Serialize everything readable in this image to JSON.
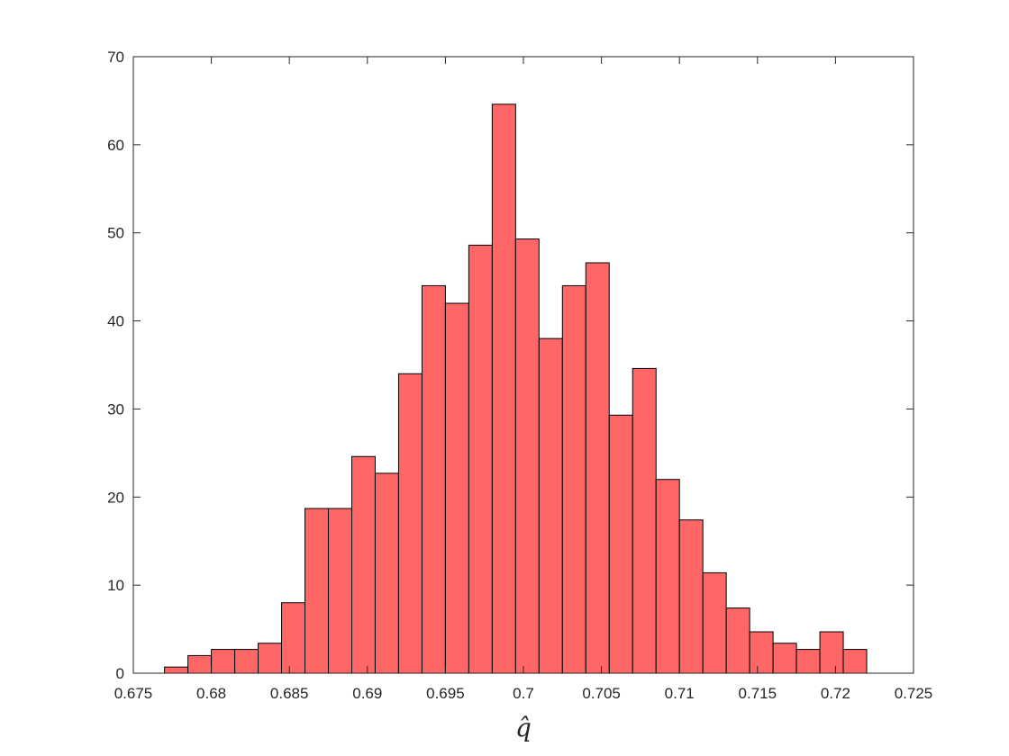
{
  "chart_data": {
    "type": "bar",
    "subtype": "histogram",
    "xlabel": "q̂",
    "ylabel": "",
    "title": "",
    "xlim": [
      0.675,
      0.725
    ],
    "ylim": [
      0,
      70
    ],
    "xticks": [
      "0.675",
      "0.68",
      "0.685",
      "0.69",
      "0.695",
      "0.7",
      "0.705",
      "0.71",
      "0.715",
      "0.72",
      "0.725"
    ],
    "yticks": [
      "0",
      "10",
      "20",
      "30",
      "40",
      "50",
      "60",
      "70"
    ],
    "bin_edges": [
      0.677,
      0.6785,
      0.68,
      0.6815,
      0.683,
      0.6845,
      0.686,
      0.6875,
      0.689,
      0.6905,
      0.692,
      0.6935,
      0.695,
      0.6965,
      0.698,
      0.6995,
      0.701,
      0.7025,
      0.704,
      0.7055,
      0.707,
      0.7085,
      0.71,
      0.7115,
      0.713,
      0.7145,
      0.716,
      0.7175,
      0.719,
      0.7205,
      0.722
    ],
    "values": [
      0.7,
      2,
      2.7,
      2.7,
      3.4,
      8,
      18.7,
      18.7,
      24.6,
      22.7,
      34,
      44,
      42,
      48.6,
      64.6,
      49.3,
      38,
      44,
      46.6,
      29.3,
      34.6,
      22,
      17.4,
      11.4,
      7.4,
      4.7,
      3.4,
      2.7,
      4.7,
      2.7
    ],
    "bar_color": "#ff6666",
    "edge_color": "#000000",
    "grid": false
  }
}
